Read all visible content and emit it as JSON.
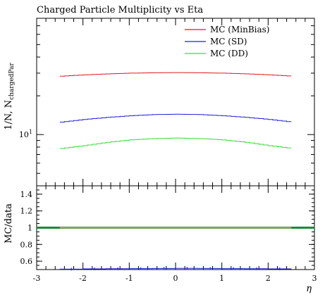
{
  "chart_data": [
    {
      "type": "line",
      "title": "Charged Particle Multiplicity vs Eta",
      "ylabel": "1/N, N_chargedPar",
      "yscale": "log",
      "yticks": [
        {
          "value": 10,
          "label": "10^1"
        }
      ],
      "xlim": [
        -3,
        3
      ],
      "legend_position": "top-right",
      "x": [
        -2.5,
        -2.0,
        -1.5,
        -1.0,
        -0.5,
        0.0,
        0.5,
        1.0,
        1.5,
        2.0,
        2.5
      ],
      "series": [
        {
          "name": "MC (MinBias)",
          "color": "#e31a1c",
          "values": [
            28.4,
            29.1,
            29.6,
            30.0,
            30.2,
            30.3,
            30.2,
            30.0,
            29.6,
            29.1,
            28.4
          ]
        },
        {
          "name": "MC (SD)",
          "color": "#1f1fe0",
          "values": [
            12.5,
            13.1,
            13.6,
            14.0,
            14.3,
            14.4,
            14.3,
            14.0,
            13.6,
            13.1,
            12.5
          ]
        },
        {
          "name": "MC (DD)",
          "color": "#33dd33",
          "values": [
            7.8,
            8.2,
            8.7,
            9.1,
            9.3,
            9.4,
            9.3,
            9.1,
            8.7,
            8.2,
            7.8
          ]
        }
      ]
    },
    {
      "type": "line",
      "ylabel": "MC/data",
      "xlabel": "η",
      "xlim": [
        -3,
        3
      ],
      "ylim": [
        0.5,
        1.5
      ],
      "xticks": [
        -3,
        -2,
        -1,
        0,
        1,
        2,
        3
      ],
      "yticks": [
        0.6,
        0.8,
        1,
        1.2,
        1.4
      ],
      "reference": {
        "value": 1,
        "band_color": "#1a8a3a",
        "line_color": "#b5a36a"
      },
      "x": [
        -2.5,
        -2.0,
        -1.5,
        -1.0,
        -0.5,
        0.0,
        0.5,
        1.0,
        1.5,
        2.0,
        2.5
      ],
      "series": [
        {
          "color": "#1f1fe0",
          "values": [
            0.505,
            0.508,
            0.51,
            0.512,
            0.514,
            0.515,
            0.514,
            0.512,
            0.51,
            0.508,
            0.505
          ]
        }
      ]
    }
  ]
}
